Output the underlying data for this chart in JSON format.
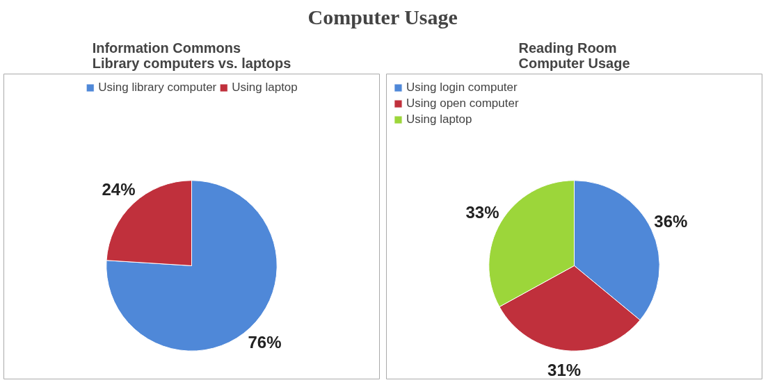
{
  "chart_data": [
    {
      "type": "other",
      "title": "Computer Usage"
    },
    {
      "type": "pie",
      "title": "Information Commons\nLibrary computers vs. laptops",
      "categories": [
        "Using library computer",
        "Using laptop"
      ],
      "values": [
        76,
        24
      ],
      "colors": [
        "#4f88d8",
        "#c0303c"
      ],
      "value_labels": [
        "76%",
        "24%"
      ],
      "legend": "top"
    },
    {
      "type": "pie",
      "title": "Reading Room\nComputer Usage",
      "categories": [
        "Using login computer",
        "Using open computer",
        "Using laptop"
      ],
      "values": [
        36,
        31,
        33
      ],
      "colors": [
        "#4f88d8",
        "#c0303c",
        "#9cd63a"
      ],
      "value_labels": [
        "36%",
        "31%",
        "33%"
      ],
      "legend": "top left"
    }
  ]
}
